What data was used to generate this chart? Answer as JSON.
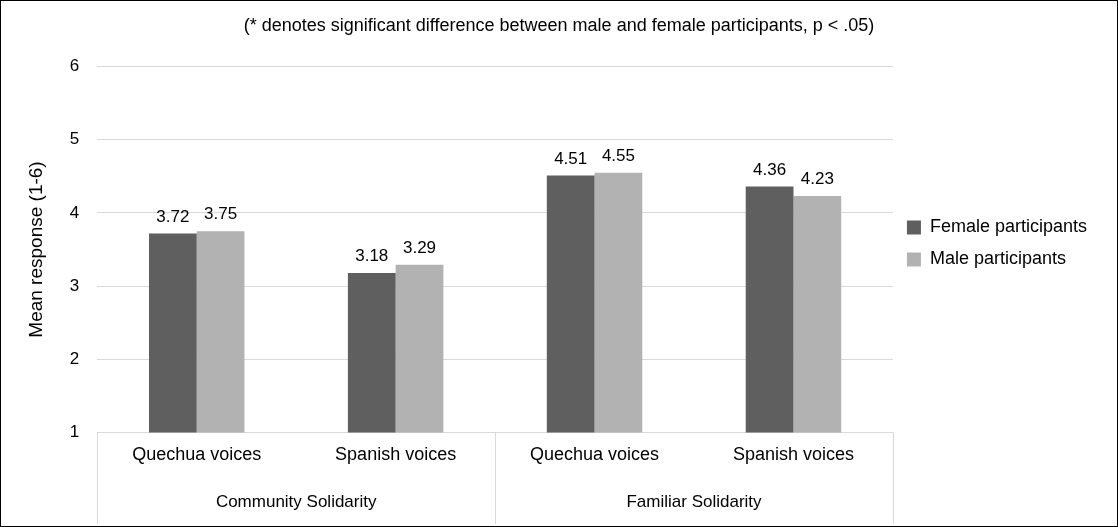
{
  "chart_data": {
    "type": "bar",
    "title": "(* denotes significant difference between male and female participants, p < .05)",
    "ylabel": "Mean response (1-6)",
    "categories": [
      "Quechua voices",
      "Spanish voices",
      "Quechua voices",
      "Spanish voices"
    ],
    "series": [
      {
        "name": "Female participants",
        "color": "#5f5f5f",
        "values": [
          3.72,
          3.18,
          4.51,
          4.36
        ]
      },
      {
        "name": "Male participants",
        "color": "#b2b2b2",
        "values": [
          3.75,
          3.29,
          4.55,
          4.23
        ]
      }
    ],
    "ylim": [
      1,
      6
    ],
    "yticks": [
      1,
      2,
      3,
      4,
      5,
      6
    ],
    "grid": "y",
    "legend": "right",
    "data_labels": true,
    "annotations": [
      "Community Solidarity",
      "Familiar Solidarity"
    ]
  }
}
